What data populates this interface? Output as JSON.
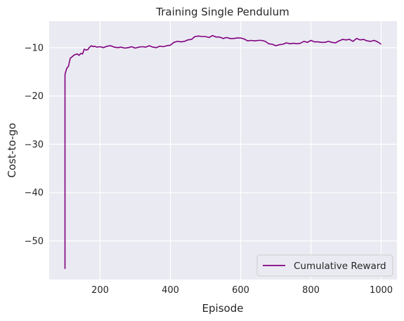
{
  "chart_data": {
    "type": "line",
    "title": "Training Single Pendulum",
    "xlabel": "Episode",
    "ylabel": "Cost-to-go",
    "xlim": [
      55,
      1045
    ],
    "ylim": [
      -58,
      -4.5
    ],
    "xticks": [
      200,
      400,
      600,
      800,
      1000
    ],
    "yticks": [
      -10,
      -20,
      -30,
      -40,
      -50
    ],
    "grid": true,
    "legend_position": "lower-right",
    "colors": {
      "background": "#EAEAF2",
      "grid": "#FFFFFF",
      "series": "#800080"
    },
    "series": [
      {
        "name": "Cumulative Reward",
        "x": [
          100,
          100,
          102,
          105,
          110,
          115,
          120,
          125,
          130,
          135,
          140,
          145,
          150,
          155,
          160,
          165,
          170,
          175,
          180,
          185,
          190,
          200,
          210,
          220,
          230,
          240,
          250,
          260,
          270,
          280,
          290,
          300,
          310,
          320,
          330,
          340,
          350,
          360,
          370,
          380,
          390,
          400,
          410,
          420,
          430,
          440,
          450,
          460,
          470,
          480,
          490,
          500,
          510,
          520,
          530,
          540,
          550,
          560,
          570,
          580,
          590,
          600,
          610,
          620,
          630,
          640,
          650,
          660,
          670,
          680,
          690,
          700,
          710,
          720,
          730,
          740,
          750,
          760,
          770,
          780,
          790,
          800,
          810,
          820,
          830,
          840,
          850,
          860,
          870,
          880,
          890,
          900,
          910,
          920,
          930,
          940,
          950,
          960,
          970,
          980,
          990,
          1000
        ],
        "y": [
          -55.8,
          -15.6,
          -15.0,
          -14.3,
          -13.8,
          -12.2,
          -11.9,
          -11.6,
          -11.4,
          -11.3,
          -11.6,
          -11.2,
          -11.3,
          -10.3,
          -10.5,
          -10.4,
          -9.9,
          -9.6,
          -9.8,
          -9.7,
          -9.9,
          -9.8,
          -10.0,
          -9.7,
          -9.6,
          -9.9,
          -10.0,
          -9.9,
          -10.1,
          -10.0,
          -9.8,
          -10.1,
          -9.9,
          -9.8,
          -9.9,
          -9.6,
          -9.9,
          -10.0,
          -9.7,
          -9.8,
          -9.6,
          -9.5,
          -8.9,
          -8.7,
          -8.8,
          -8.7,
          -8.4,
          -8.3,
          -7.7,
          -7.6,
          -7.7,
          -7.7,
          -7.9,
          -7.5,
          -7.8,
          -7.8,
          -8.1,
          -7.9,
          -8.1,
          -8.1,
          -8.0,
          -8.0,
          -8.2,
          -8.6,
          -8.5,
          -8.6,
          -8.5,
          -8.5,
          -8.7,
          -9.2,
          -9.3,
          -9.6,
          -9.4,
          -9.3,
          -9.0,
          -9.2,
          -9.1,
          -9.2,
          -9.1,
          -8.7,
          -8.9,
          -8.5,
          -8.8,
          -8.8,
          -8.9,
          -8.9,
          -8.7,
          -8.9,
          -9.0,
          -8.6,
          -8.3,
          -8.4,
          -8.3,
          -8.7,
          -8.1,
          -8.4,
          -8.3,
          -8.6,
          -8.7,
          -8.5,
          -8.8,
          -9.3
        ]
      }
    ]
  }
}
